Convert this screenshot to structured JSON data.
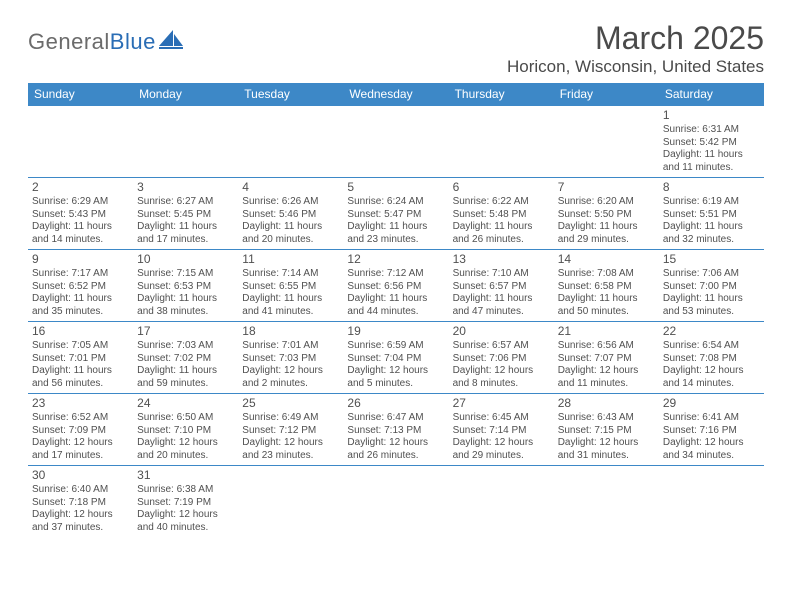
{
  "logo": {
    "word1": "General",
    "word2": "Blue"
  },
  "title": "March 2025",
  "location": "Horicon, Wisconsin, United States",
  "colors": {
    "header_bg": "#3d88c7",
    "header_fg": "#ffffff",
    "text": "#505050",
    "rule": "#3d88c7"
  },
  "daynames": [
    "Sunday",
    "Monday",
    "Tuesday",
    "Wednesday",
    "Thursday",
    "Friday",
    "Saturday"
  ],
  "grid": [
    [
      null,
      null,
      null,
      null,
      null,
      null,
      {
        "n": "1",
        "sr": "6:31 AM",
        "ss": "5:42 PM",
        "dl": "11 hours and 11 minutes."
      }
    ],
    [
      {
        "n": "2",
        "sr": "6:29 AM",
        "ss": "5:43 PM",
        "dl": "11 hours and 14 minutes."
      },
      {
        "n": "3",
        "sr": "6:27 AM",
        "ss": "5:45 PM",
        "dl": "11 hours and 17 minutes."
      },
      {
        "n": "4",
        "sr": "6:26 AM",
        "ss": "5:46 PM",
        "dl": "11 hours and 20 minutes."
      },
      {
        "n": "5",
        "sr": "6:24 AM",
        "ss": "5:47 PM",
        "dl": "11 hours and 23 minutes."
      },
      {
        "n": "6",
        "sr": "6:22 AM",
        "ss": "5:48 PM",
        "dl": "11 hours and 26 minutes."
      },
      {
        "n": "7",
        "sr": "6:20 AM",
        "ss": "5:50 PM",
        "dl": "11 hours and 29 minutes."
      },
      {
        "n": "8",
        "sr": "6:19 AM",
        "ss": "5:51 PM",
        "dl": "11 hours and 32 minutes."
      }
    ],
    [
      {
        "n": "9",
        "sr": "7:17 AM",
        "ss": "6:52 PM",
        "dl": "11 hours and 35 minutes."
      },
      {
        "n": "10",
        "sr": "7:15 AM",
        "ss": "6:53 PM",
        "dl": "11 hours and 38 minutes."
      },
      {
        "n": "11",
        "sr": "7:14 AM",
        "ss": "6:55 PM",
        "dl": "11 hours and 41 minutes."
      },
      {
        "n": "12",
        "sr": "7:12 AM",
        "ss": "6:56 PM",
        "dl": "11 hours and 44 minutes."
      },
      {
        "n": "13",
        "sr": "7:10 AM",
        "ss": "6:57 PM",
        "dl": "11 hours and 47 minutes."
      },
      {
        "n": "14",
        "sr": "7:08 AM",
        "ss": "6:58 PM",
        "dl": "11 hours and 50 minutes."
      },
      {
        "n": "15",
        "sr": "7:06 AM",
        "ss": "7:00 PM",
        "dl": "11 hours and 53 minutes."
      }
    ],
    [
      {
        "n": "16",
        "sr": "7:05 AM",
        "ss": "7:01 PM",
        "dl": "11 hours and 56 minutes."
      },
      {
        "n": "17",
        "sr": "7:03 AM",
        "ss": "7:02 PM",
        "dl": "11 hours and 59 minutes."
      },
      {
        "n": "18",
        "sr": "7:01 AM",
        "ss": "7:03 PM",
        "dl": "12 hours and 2 minutes."
      },
      {
        "n": "19",
        "sr": "6:59 AM",
        "ss": "7:04 PM",
        "dl": "12 hours and 5 minutes."
      },
      {
        "n": "20",
        "sr": "6:57 AM",
        "ss": "7:06 PM",
        "dl": "12 hours and 8 minutes."
      },
      {
        "n": "21",
        "sr": "6:56 AM",
        "ss": "7:07 PM",
        "dl": "12 hours and 11 minutes."
      },
      {
        "n": "22",
        "sr": "6:54 AM",
        "ss": "7:08 PM",
        "dl": "12 hours and 14 minutes."
      }
    ],
    [
      {
        "n": "23",
        "sr": "6:52 AM",
        "ss": "7:09 PM",
        "dl": "12 hours and 17 minutes."
      },
      {
        "n": "24",
        "sr": "6:50 AM",
        "ss": "7:10 PM",
        "dl": "12 hours and 20 minutes."
      },
      {
        "n": "25",
        "sr": "6:49 AM",
        "ss": "7:12 PM",
        "dl": "12 hours and 23 minutes."
      },
      {
        "n": "26",
        "sr": "6:47 AM",
        "ss": "7:13 PM",
        "dl": "12 hours and 26 minutes."
      },
      {
        "n": "27",
        "sr": "6:45 AM",
        "ss": "7:14 PM",
        "dl": "12 hours and 29 minutes."
      },
      {
        "n": "28",
        "sr": "6:43 AM",
        "ss": "7:15 PM",
        "dl": "12 hours and 31 minutes."
      },
      {
        "n": "29",
        "sr": "6:41 AM",
        "ss": "7:16 PM",
        "dl": "12 hours and 34 minutes."
      }
    ],
    [
      {
        "n": "30",
        "sr": "6:40 AM",
        "ss": "7:18 PM",
        "dl": "12 hours and 37 minutes."
      },
      {
        "n": "31",
        "sr": "6:38 AM",
        "ss": "7:19 PM",
        "dl": "12 hours and 40 minutes."
      },
      null,
      null,
      null,
      null,
      null
    ]
  ],
  "labels": {
    "sunrise": "Sunrise:",
    "sunset": "Sunset:",
    "daylight": "Daylight:"
  }
}
